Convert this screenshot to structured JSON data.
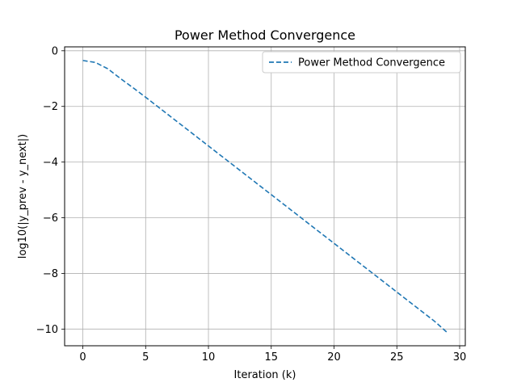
{
  "chart_data": {
    "type": "line",
    "title": "Power Method Convergence",
    "xlabel": "Iteration (k)",
    "ylabel": "log10(|y_prev - y_next|)",
    "xlim": [
      -1.45,
      30.45
    ],
    "ylim": [
      -10.6,
      0.14
    ],
    "xticks": [
      0,
      5,
      10,
      15,
      20,
      25,
      30
    ],
    "yticks": [
      0,
      -2,
      -4,
      -6,
      -8,
      -10
    ],
    "grid": true,
    "legend_position": "top-right",
    "series": [
      {
        "name": "Power Method Convergence",
        "color": "#1f77b4",
        "line_style": "dashed",
        "x": [
          0,
          1,
          2,
          3,
          4,
          5,
          6,
          7,
          8,
          9,
          10,
          11,
          12,
          13,
          14,
          15,
          16,
          17,
          18,
          19,
          20,
          21,
          22,
          23,
          24,
          25,
          26,
          27,
          28,
          29
        ],
        "y": [
          -0.35,
          -0.42,
          -0.65,
          -1.0,
          -1.33,
          -1.67,
          -2.02,
          -2.37,
          -2.72,
          -3.07,
          -3.42,
          -3.77,
          -4.12,
          -4.47,
          -4.82,
          -5.17,
          -5.52,
          -5.87,
          -6.22,
          -6.57,
          -6.92,
          -7.27,
          -7.62,
          -7.97,
          -8.32,
          -8.67,
          -9.02,
          -9.37,
          -9.72,
          -10.12
        ]
      }
    ]
  }
}
